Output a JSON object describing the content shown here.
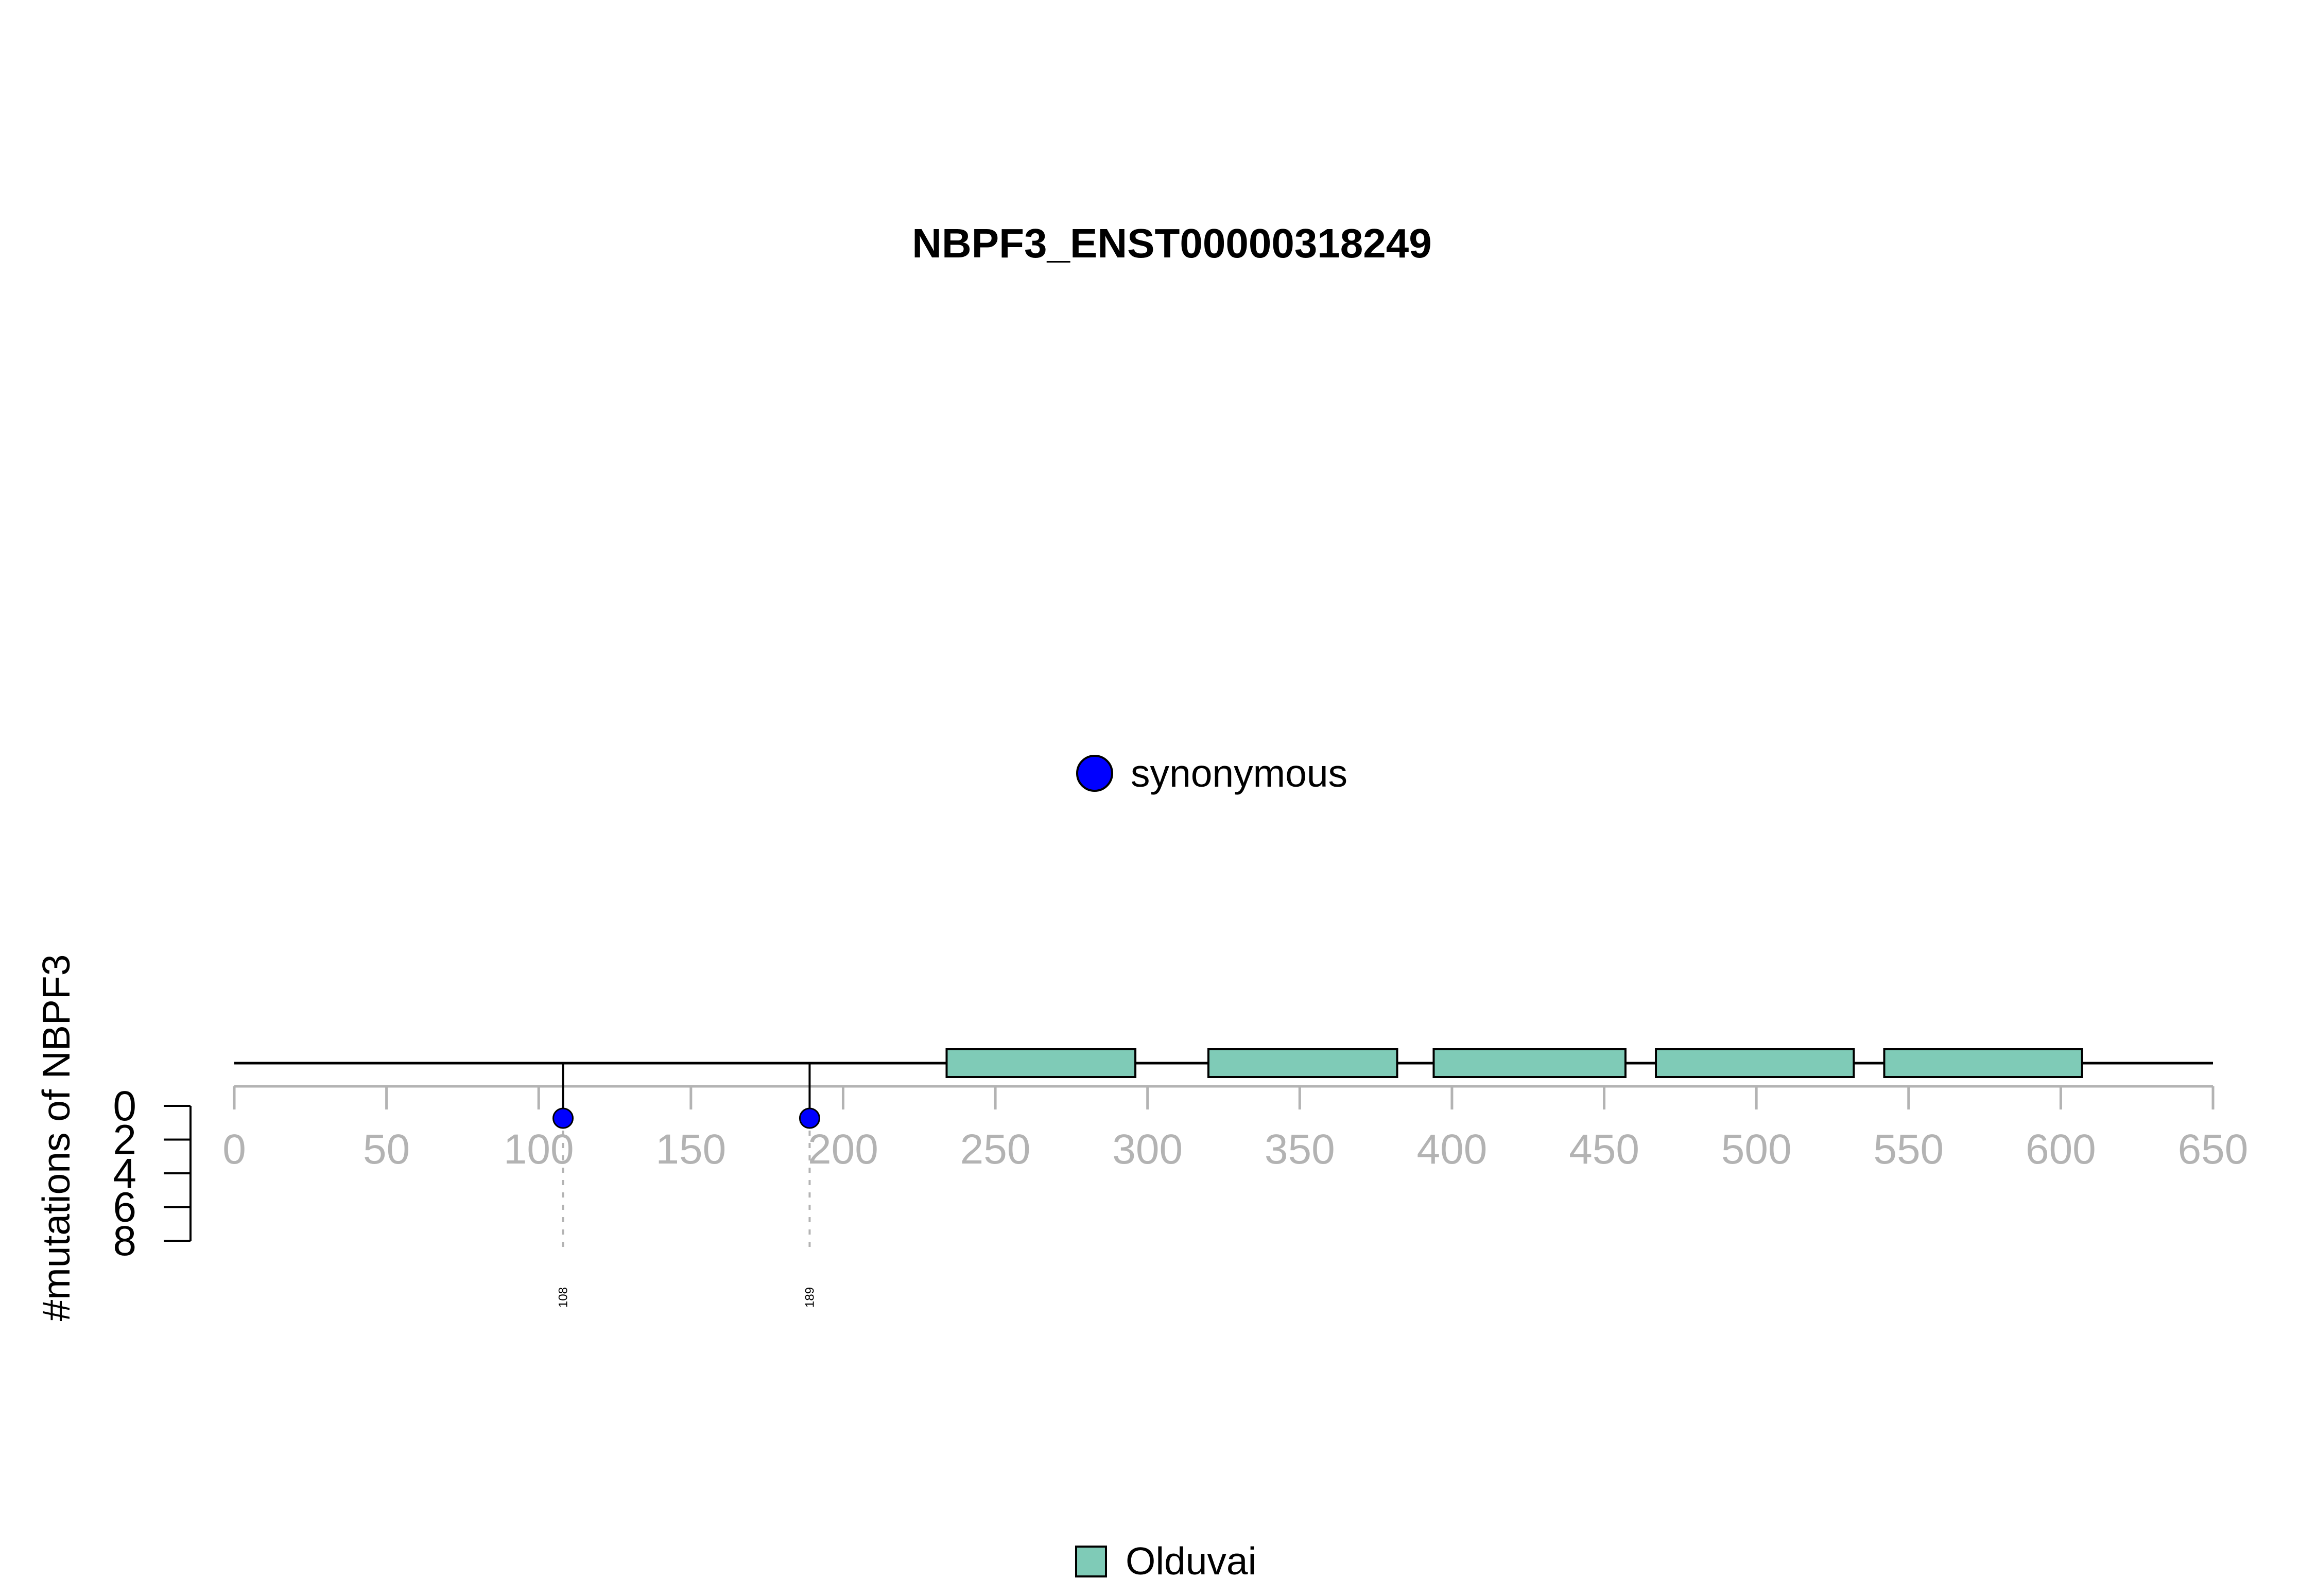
{
  "chart_data": {
    "type": "lollipop",
    "title": "NBPF3_ENST00000318249",
    "ylabel": "#mutations of NBPF3",
    "xlim": [
      0,
      650
    ],
    "x_ticks": [
      "0",
      "50",
      "100",
      "150",
      "200",
      "250",
      "300",
      "350",
      "400",
      "450",
      "500",
      "550",
      "600",
      "650"
    ],
    "ylim": [
      0,
      8
    ],
    "y_ticks": [
      "0",
      "2",
      "4",
      "6",
      "8"
    ],
    "protein_length": 650,
    "mutations": [
      {
        "position": 108,
        "count": 1,
        "type": "synonymous",
        "label": "108",
        "color": "#0000ff"
      },
      {
        "position": 189,
        "count": 1,
        "type": "synonymous",
        "label": "189",
        "color": "#0000ff"
      }
    ],
    "domains": [
      {
        "name": "Olduvai",
        "start": 234,
        "end": 296,
        "color": "#7fcbb7"
      },
      {
        "name": "Olduvai",
        "start": 320,
        "end": 382,
        "color": "#7fcbb7"
      },
      {
        "name": "Olduvai",
        "start": 394,
        "end": 457,
        "color": "#7fcbb7"
      },
      {
        "name": "Olduvai",
        "start": 467,
        "end": 532,
        "color": "#7fcbb7"
      },
      {
        "name": "Olduvai",
        "start": 542,
        "end": 607,
        "color": "#7fcbb7"
      }
    ],
    "legend_mutation": {
      "label": "synonymous",
      "color": "#0000ff"
    },
    "legend_domain": {
      "label": "Olduvai",
      "color": "#7fcbb7"
    }
  }
}
